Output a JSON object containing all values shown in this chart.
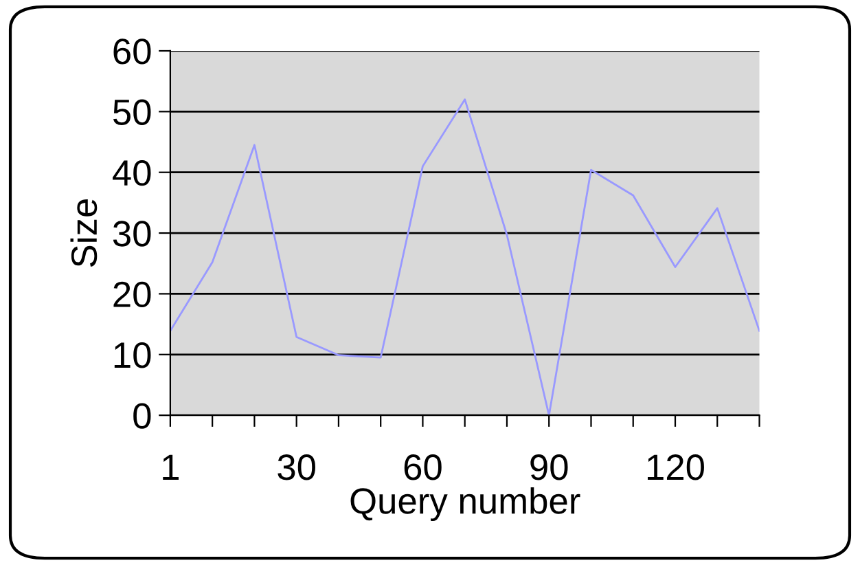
{
  "chart_data": {
    "type": "line",
    "xlabel": "Query number",
    "ylabel": "Size",
    "categories": [
      "1",
      null,
      null,
      "30",
      null,
      null,
      "60",
      null,
      null,
      "90",
      null,
      null,
      "120",
      null,
      null
    ],
    "series": [
      {
        "color": "#9999ff",
        "values": [
          13.9,
          25.2,
          44.5,
          12.9,
          9.9,
          9.5,
          41.0,
          52.0,
          29.7,
          0,
          40.4,
          36.2,
          24.4,
          34.1,
          13.9
        ]
      }
    ],
    "ylim": [
      0,
      60
    ],
    "yticks": [
      0,
      10,
      20,
      30,
      40,
      50,
      60
    ],
    "grid": "y",
    "legend": false,
    "marker": "none",
    "line_style": "solid"
  }
}
